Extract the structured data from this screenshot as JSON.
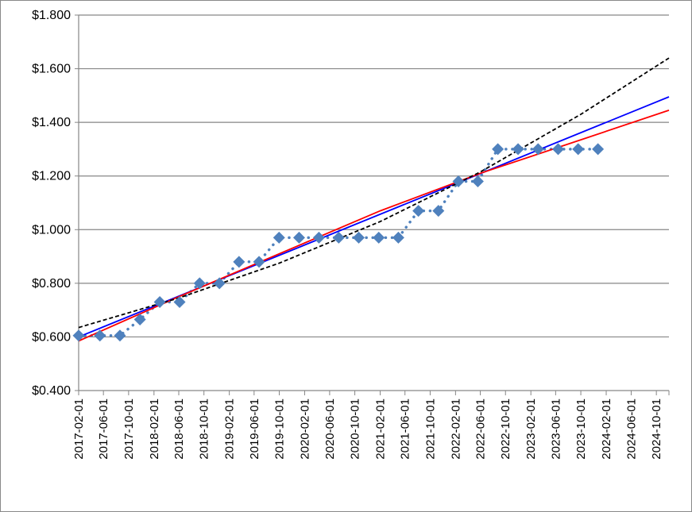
{
  "chart_data": {
    "type": "scatter",
    "title": "",
    "xlabel": "",
    "ylabel": "",
    "y_tick_labels": [
      "$1.800",
      "$1.600",
      "$1.400",
      "$1.200",
      "$1.000",
      "$0.800",
      "$0.600",
      "$0.400"
    ],
    "y_tick_values": [
      1.8,
      1.6,
      1.4,
      1.2,
      1.0,
      0.8,
      0.6,
      0.4
    ],
    "ylim": [
      0.4,
      1.8
    ],
    "xlim": [
      "2017-02-01",
      "2024-12-01"
    ],
    "x_tick_labels": [
      "2017-02-01",
      "2017-06-01",
      "2017-10-01",
      "2018-02-01",
      "2018-06-01",
      "2018-10-01",
      "2019-02-01",
      "2019-06-01",
      "2019-10-01",
      "2020-02-01",
      "2020-06-01",
      "2020-10-01",
      "2021-02-01",
      "2021-06-01",
      "2021-10-01",
      "2022-02-01",
      "2022-06-01",
      "2022-10-01",
      "2023-02-01",
      "2023-06-01",
      "2023-10-01",
      "2024-02-01",
      "2024-06-01",
      "2024-10-01"
    ],
    "grid": "horizontal",
    "legend": "none",
    "series": [
      {
        "kind": "markers",
        "marker": "diamond",
        "line_style": "dotted",
        "color": "#4F81BD",
        "x": [
          "2017-02-01",
          "2017-05-15",
          "2017-08-20",
          "2017-11-25",
          "2018-03-01",
          "2018-06-05",
          "2018-09-10",
          "2018-12-15",
          "2019-03-20",
          "2019-06-25",
          "2019-09-30",
          "2020-01-05",
          "2020-04-10",
          "2020-07-15",
          "2020-10-20",
          "2021-01-25",
          "2021-04-30",
          "2021-08-05",
          "2021-11-10",
          "2022-02-15",
          "2022-05-20",
          "2022-08-25",
          "2022-12-01",
          "2023-03-08",
          "2023-06-13",
          "2023-09-18",
          "2023-12-23"
        ],
        "values": [
          0.605,
          0.605,
          0.605,
          0.665,
          0.73,
          0.73,
          0.8,
          0.8,
          0.88,
          0.88,
          0.97,
          0.97,
          0.97,
          0.97,
          0.97,
          0.97,
          0.97,
          1.07,
          1.07,
          1.18,
          1.18,
          1.3,
          1.3,
          1.3,
          1.3,
          1.3,
          1.3
        ]
      },
      {
        "kind": "trendline-linear",
        "color": "#0000FF",
        "x": [
          "2017-02-01",
          "2024-12-01"
        ],
        "values": [
          0.6,
          1.495
        ]
      },
      {
        "kind": "trendline-curved",
        "color": "#FF0000",
        "x": [
          "2017-02-01",
          "2018-06-01",
          "2019-10-01",
          "2021-02-01",
          "2022-06-01",
          "2023-10-01",
          "2024-12-01"
        ],
        "values": [
          0.585,
          0.75,
          0.91,
          1.07,
          1.21,
          1.335,
          1.445
        ]
      },
      {
        "kind": "trendline-exponential",
        "line_style": "dashed",
        "color": "#000000",
        "x": [
          "2017-02-01",
          "2018-06-01",
          "2019-10-01",
          "2021-02-01",
          "2022-06-01",
          "2023-10-01",
          "2024-12-01"
        ],
        "values": [
          0.635,
          0.745,
          0.875,
          1.03,
          1.215,
          1.43,
          1.64
        ]
      }
    ]
  }
}
